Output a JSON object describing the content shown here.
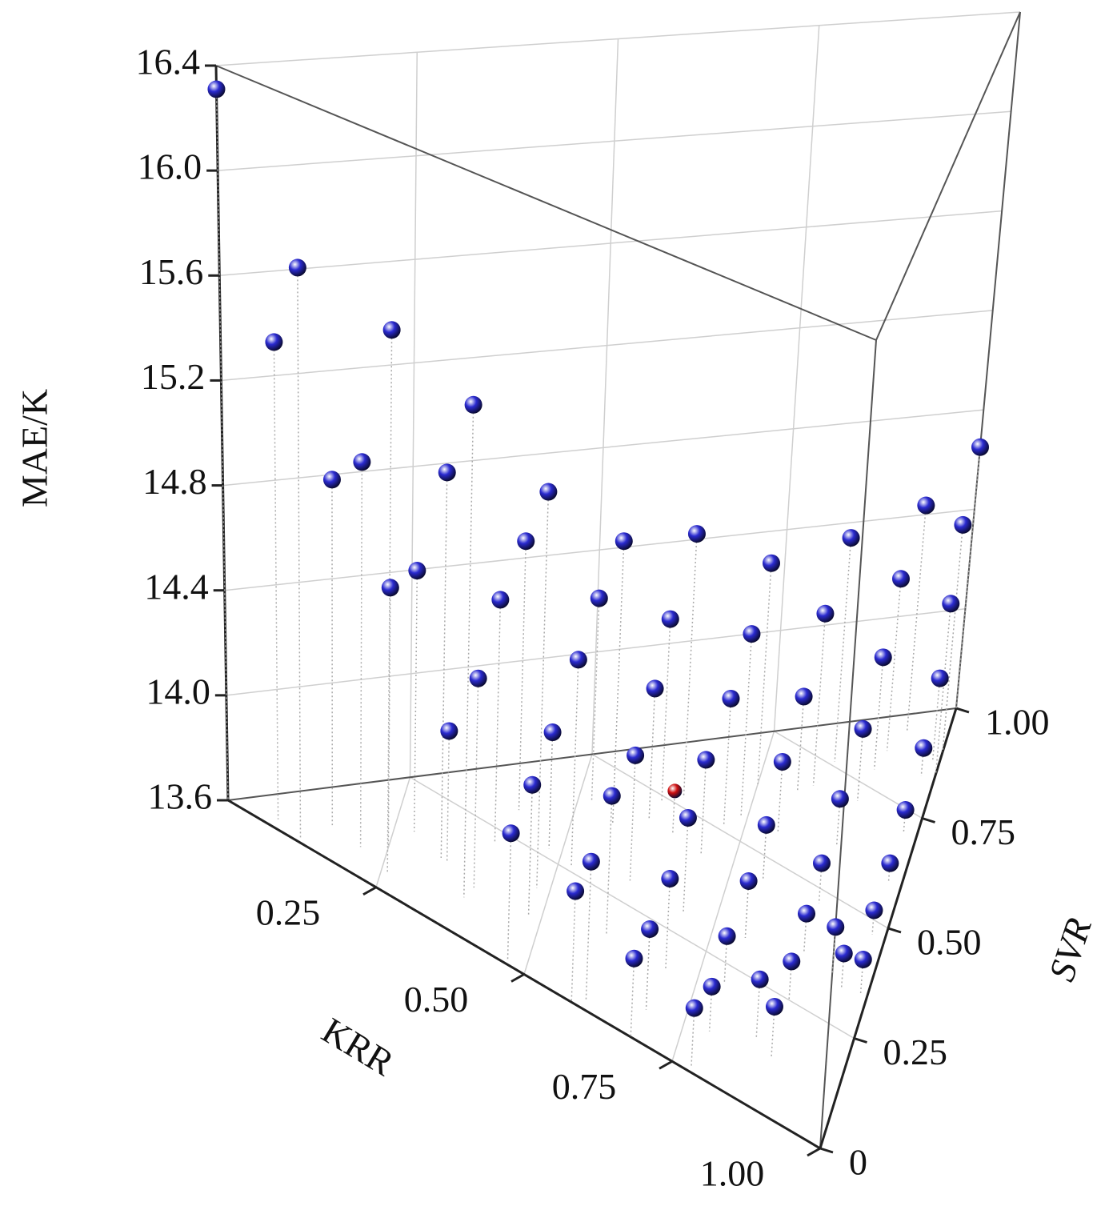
{
  "chart_data": {
    "type": "scatter3d",
    "x_label": "KRR",
    "y_label": "SVR",
    "z_label": "MAE/K",
    "xlim": [
      0,
      1
    ],
    "ylim": [
      0,
      1
    ],
    "zlim": [
      13.6,
      16.4
    ],
    "xticks": [
      0.25,
      {
        "value": 0.5,
        "label": "0.50"
      },
      0.75,
      {
        "value": 1,
        "label": "1.00"
      }
    ],
    "yticks": [
      0,
      0.25,
      {
        "value": 0.5,
        "label": "0.50"
      },
      0.75,
      {
        "value": 1,
        "label": "1.00"
      }
    ],
    "zticks": [
      13.6,
      {
        "value": 14,
        "label": "14.0"
      },
      14.4,
      14.8,
      15.2,
      15.6,
      {
        "value": 16,
        "label": "16.0"
      },
      16.4
    ],
    "grid": true,
    "series": [
      {
        "color": "#2a2ad0",
        "x": [
          0,
          0.12,
          0.08,
          0.26,
          0.38,
          0.16,
          0.21,
          0.33,
          0.48,
          0.25,
          0.28,
          0.42,
          0.4,
          0.56,
          0.65,
          0.52,
          0.39,
          0.52,
          0.62,
          0.75,
          0.85,
          0.94,
          1,
          1,
          0.92,
          0.83,
          0.74,
          0.61,
          0.34,
          0.48,
          0.72,
          0.81,
          0.91,
          1,
          0.99,
          0.9,
          0.8,
          0.7,
          0.61,
          0.48,
          0.98,
          0.89,
          0.8,
          0.7,
          0.6,
          0.47,
          0.98,
          0.89,
          0.8,
          0.7,
          0.6,
          0.98,
          0.89,
          0.79,
          0.69,
          0.58,
          0.98,
          0.94,
          0.89,
          0.79,
          0.68,
          0.96,
          0.99,
          0.86,
          0.78,
          0.89
        ],
        "y": [
          0,
          0.01,
          0.02,
          0.04,
          0.08,
          0.07,
          0.06,
          0.13,
          0.18,
          0.09,
          0.15,
          0.31,
          0.22,
          0.39,
          0.52,
          0.41,
          0.11,
          0.26,
          0.49,
          0.63,
          0.76,
          0.9,
          1,
          0.9,
          0.84,
          0.69,
          0.55,
          0.44,
          0.13,
          0.27,
          0.51,
          0.66,
          0.79,
          0.85,
          0.87,
          0.71,
          0.56,
          0.43,
          0.3,
          0.12,
          0.83,
          0.6,
          0.45,
          0.3,
          0.17,
          0.01,
          0.7,
          0.47,
          0.32,
          0.17,
          0.02,
          0.59,
          0.36,
          0.21,
          0.07,
          0,
          0.47,
          0.35,
          0.25,
          0.1,
          0,
          0.33,
          0.34,
          0.14,
          0.01,
          0.12
        ],
        "z": [
          16.31,
          15.75,
          15.41,
          15.63,
          15.43,
          14.91,
          15.05,
          15.05,
          15.08,
          14.58,
          14.59,
          14.63,
          14.52,
          14.68,
          14.62,
          14.38,
          14.38,
          14.38,
          14.3,
          14.46,
          14.48,
          14.5,
          14.65,
          14.5,
          14.28,
          14.27,
          14.3,
          14.1,
          14.09,
          14.04,
          14.09,
          13.97,
          14.04,
          14.27,
          13.93,
          13.88,
          13.87,
          13.96,
          14.07,
          14.08,
          13.71,
          13.78,
          13.81,
          13.95,
          14.11,
          14.06,
          13.69,
          13.75,
          13.81,
          13.93,
          14.1,
          13.67,
          13.74,
          13.77,
          13.89,
          14.0,
          13.69,
          13.77,
          13.74,
          13.76,
          13.88,
          13.73,
          13.73,
          13.81,
          13.81,
          13.78
        ]
      },
      {
        "color": "#d01010",
        "x": [
          0.65
        ],
        "y": [
          0.44
        ],
        "z": [
          13.76
        ]
      }
    ]
  }
}
